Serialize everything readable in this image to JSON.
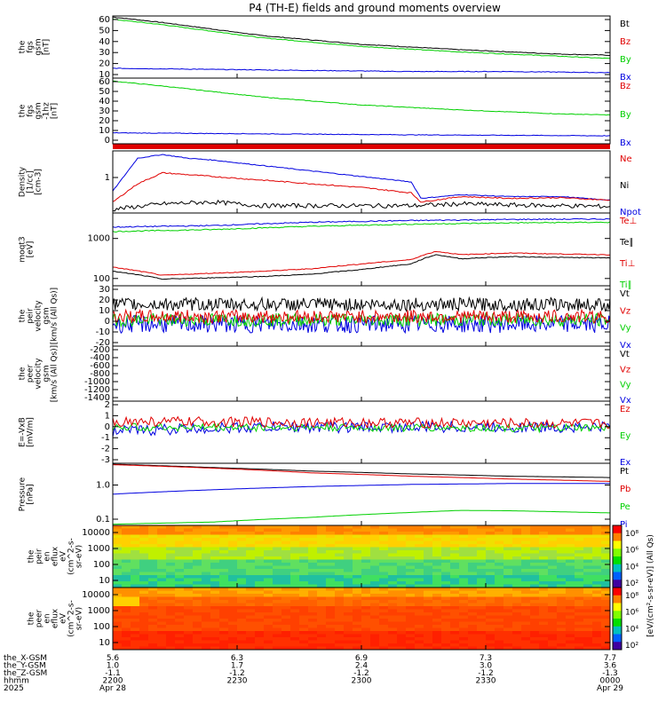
{
  "title": "P4 (TH-E) fields and ground moments overview",
  "colors": {
    "black": "#000000",
    "red": "#e00000",
    "green": "#00d000",
    "blue": "#0000e0"
  },
  "chart_data": {
    "type": "line",
    "x_ticks": [
      "2200",
      "2230",
      "2300",
      "2330",
      "0000"
    ],
    "x_dates": [
      "Apr 28",
      "Apr 29"
    ],
    "x_year": "2025",
    "footer": {
      "labels": [
        "the_X-GSM",
        "the_Y-GSM",
        "the_Z-GSM",
        "hhmm",
        "2025"
      ],
      "rows": [
        [
          "5.6",
          "6.3",
          "6.9",
          "7.3",
          "7.7"
        ],
        [
          "1.0",
          "1.7",
          "2.4",
          "3.0",
          "3.6"
        ],
        [
          "-1.1",
          "-1.2",
          "-1.2",
          "-1.2",
          "-1.3"
        ]
      ]
    },
    "panels": [
      {
        "ylabel": [
          "the",
          "fgs",
          "gsm",
          "[nT]"
        ],
        "yticks": [
          "60",
          "50",
          "40",
          "30",
          "20",
          "10"
        ],
        "ylim": [
          6,
          63
        ],
        "legend": [
          {
            "name": "Bt",
            "color": "#000000"
          },
          {
            "name": "Bz",
            "color": "#e00000"
          },
          {
            "name": "By",
            "color": "#00d000"
          },
          {
            "name": "Bx",
            "color": "#0000e0"
          }
        ],
        "series": [
          {
            "name": "Bt",
            "color": "#000000",
            "noise": 0.3,
            "x": [
              0,
              0.1,
              0.3,
              0.5,
              0.7,
              0.9,
              1
            ],
            "y": [
              62,
              57,
              45,
              37,
              32,
              28,
              27
            ]
          },
          {
            "name": "By",
            "color": "#00d000",
            "noise": 0.3,
            "x": [
              0,
              0.1,
              0.3,
              0.5,
              0.7,
              0.9,
              1
            ],
            "y": [
              60,
              55,
              43,
              35,
              30,
              26,
              24
            ]
          },
          {
            "name": "Bx",
            "color": "#0000e0",
            "noise": 0.3,
            "x": [
              0,
              0.2,
              0.4,
              0.6,
              0.8,
              1
            ],
            "y": [
              15,
              14,
              13,
              12,
              12,
              11
            ]
          }
        ]
      },
      {
        "ylabel": [
          "the",
          "fgs",
          "gsm",
          "-1hz",
          "[nT]"
        ],
        "yticks": [
          "60",
          "50",
          "40",
          "30",
          "20",
          "10",
          "0"
        ],
        "ylim": [
          -3,
          63
        ],
        "legend": [
          {
            "name": "Bz",
            "color": "#e00000"
          },
          {
            "name": "By",
            "color": "#00d000"
          },
          {
            "name": "Bx",
            "color": "#0000e0"
          }
        ],
        "series": [
          {
            "name": "By",
            "color": "#00d000",
            "noise": 0.3,
            "x": [
              0,
              0.1,
              0.3,
              0.5,
              0.7,
              0.9,
              1
            ],
            "y": [
              60,
              55,
              44,
              36,
              31,
              27,
              26
            ]
          },
          {
            "name": "Bx",
            "color": "#0000e0",
            "noise": 0.3,
            "x": [
              0,
              0.3,
              0.6,
              1
            ],
            "y": [
              8,
              7,
              6,
              5
            ]
          }
        ]
      },
      {
        "ylabel": [
          "Density",
          "[1/cc]",
          "[cm-3]"
        ],
        "yticks": [
          "1"
        ],
        "ylim": [
          0,
          1.7
        ],
        "legend": [
          {
            "name": "Ne",
            "color": "#e00000"
          },
          {
            "name": "Ni",
            "color": "#000000"
          },
          {
            "name": "Npot",
            "color": "#0000e0"
          }
        ],
        "series": [
          {
            "name": "Npot",
            "color": "#0000e0",
            "noise": 0.01,
            "x": [
              0,
              0.05,
              0.1,
              0.15,
              0.2,
              0.3,
              0.4,
              0.5,
              0.6,
              0.62,
              0.7,
              0.8,
              0.9,
              1
            ],
            "y": [
              0.6,
              1.5,
              1.6,
              1.5,
              1.45,
              1.3,
              1.15,
              1.0,
              0.85,
              0.4,
              0.5,
              0.45,
              0.45,
              0.35
            ]
          },
          {
            "name": "Ne",
            "color": "#e00000",
            "noise": 0.015,
            "x": [
              0,
              0.05,
              0.1,
              0.15,
              0.2,
              0.3,
              0.4,
              0.5,
              0.6,
              0.62,
              0.7,
              0.8,
              0.9,
              1
            ],
            "y": [
              0.3,
              0.8,
              1.1,
              1.05,
              1.0,
              0.9,
              0.8,
              0.7,
              0.55,
              0.3,
              0.45,
              0.4,
              0.42,
              0.35
            ]
          },
          {
            "name": "Ni",
            "color": "#000000",
            "noise": 0.06,
            "x": [
              0,
              0.1,
              0.2,
              0.3,
              0.4,
              0.5,
              0.6,
              0.7,
              0.8,
              0.9,
              1
            ],
            "y": [
              0.1,
              0.25,
              0.3,
              0.2,
              0.2,
              0.2,
              0.2,
              0.25,
              0.22,
              0.2,
              0.18
            ]
          }
        ]
      },
      {
        "ylabel": [
          "moqt3",
          "[eV]"
        ],
        "yticks": [
          "1000",
          "100"
        ],
        "ylim": [
          90,
          5000
        ],
        "log": true,
        "legend": [
          {
            "name": "Te⊥",
            "color": "#e00000"
          },
          {
            "name": "Te∥",
            "color": "#000000"
          },
          {
            "name": "Ti⊥",
            "color": "#e00000"
          },
          {
            "name": "Ti∥",
            "color": "#00d000"
          }
        ],
        "series": [
          {
            "name": "Te⊥",
            "color": "#0000e0",
            "noise": 0.03,
            "x": [
              0,
              0.2,
              0.4,
              0.6,
              0.8,
              1
            ],
            "y": [
              2300,
              2500,
              3000,
              3300,
              3500,
              3600
            ]
          },
          {
            "name": "Ti∥",
            "color": "#00d000",
            "noise": 0.03,
            "x": [
              0,
              0.2,
              0.4,
              0.6,
              0.8,
              1
            ],
            "y": [
              1800,
              2000,
              2400,
              2700,
              2900,
              3000
            ]
          },
          {
            "name": "Ti⊥",
            "color": "#e00000",
            "noise": 0.02,
            "x": [
              0,
              0.1,
              0.2,
              0.3,
              0.4,
              0.5,
              0.6,
              0.65,
              0.7,
              0.8,
              0.9,
              1
            ],
            "y": [
              250,
              160,
              180,
              200,
              230,
              300,
              380,
              600,
              500,
              550,
              520,
              500
            ]
          },
          {
            "name": "Te∥",
            "color": "#000000",
            "noise": 0.02,
            "x": [
              0,
              0.1,
              0.2,
              0.3,
              0.4,
              0.5,
              0.6,
              0.65,
              0.7,
              0.8,
              0.9,
              1
            ],
            "y": [
              200,
              130,
              140,
              150,
              170,
              220,
              300,
              500,
              400,
              450,
              430,
              420
            ]
          }
        ]
      },
      {
        "ylabel": [
          "the",
          "peir",
          "velocity",
          "gsm",
          "[km/s (All Qs)]"
        ],
        "yticks": [
          "30",
          "20",
          "10",
          "0",
          "-10",
          "-20"
        ],
        "ylim": [
          -22,
          33
        ],
        "legend": [
          {
            "name": "Vt",
            "color": "#000000"
          },
          {
            "name": "Vz",
            "color": "#e00000"
          },
          {
            "name": "Vy",
            "color": "#00d000"
          },
          {
            "name": "Vx",
            "color": "#0000e0"
          }
        ],
        "series": [
          {
            "name": "Vx",
            "color": "#0000e0",
            "noise": 8,
            "x": [
              0,
              1
            ],
            "y": [
              -2,
              -2
            ]
          },
          {
            "name": "Vy",
            "color": "#00d000",
            "noise": 6,
            "x": [
              0,
              1
            ],
            "y": [
              2,
              2
            ]
          },
          {
            "name": "Vz",
            "color": "#e00000",
            "noise": 6,
            "x": [
              0,
              1
            ],
            "y": [
              5,
              5
            ]
          },
          {
            "name": "Vt",
            "color": "#000000",
            "noise": 6,
            "x": [
              0,
              1
            ],
            "y": [
              16,
              16
            ]
          }
        ]
      },
      {
        "ylabel": [
          "the",
          "peer",
          "velocity",
          "gsm",
          "[km/s (All Qs)]"
        ],
        "yticks": [
          "-200",
          "-400",
          "-600",
          "-800",
          "-1000",
          "-1200",
          "-1400"
        ],
        "ylim": [
          -1450,
          -100
        ],
        "legend": [
          {
            "name": "Vt",
            "color": "#000000"
          },
          {
            "name": "Vz",
            "color": "#e00000"
          },
          {
            "name": "Vy",
            "color": "#00d000"
          },
          {
            "name": "Vx",
            "color": "#0000e0"
          }
        ],
        "series": []
      },
      {
        "ylabel": [
          "E=-VxB",
          "[mV/m]"
        ],
        "yticks": [
          "2",
          "1",
          "0",
          "-1",
          "-2",
          "-3"
        ],
        "ylim": [
          -3.2,
          2.3
        ],
        "legend": [
          {
            "name": "Ez",
            "color": "#e00000"
          },
          {
            "name": "Ey",
            "color": "#00d000"
          },
          {
            "name": "Ex",
            "color": "#0000e0"
          }
        ],
        "series": [
          {
            "name": "Ex",
            "color": "#0000e0",
            "noise": 0.5,
            "x": [
              0,
              0.1,
              0.3,
              1
            ],
            "y": [
              -0.4,
              -0.2,
              0,
              0
            ]
          },
          {
            "name": "Ey",
            "color": "#00d000",
            "noise": 0.35,
            "x": [
              0,
              1
            ],
            "y": [
              0,
              -0.1
            ]
          },
          {
            "name": "Ez",
            "color": "#e00000",
            "noise": 0.45,
            "x": [
              0,
              1
            ],
            "y": [
              0.5,
              0.3
            ]
          }
        ]
      },
      {
        "ylabel": [
          "Pressure",
          "[nPa]"
        ],
        "yticks": [
          "1.0",
          "0.1"
        ],
        "ylim": [
          0.01,
          1.4
        ],
        "log": true,
        "legend": [
          {
            "name": "Pt",
            "color": "#000000"
          },
          {
            "name": "Pb",
            "color": "#e00000"
          },
          {
            "name": "Pe",
            "color": "#00d000"
          },
          {
            "name": "Pi",
            "color": "#0000e0"
          }
        ],
        "series": [
          {
            "name": "Pt",
            "color": "#000000",
            "noise": 0.002,
            "x": [
              0,
              0.2,
              0.4,
              0.6,
              0.8,
              1
            ],
            "y": [
              1.3,
              1.0,
              0.75,
              0.6,
              0.5,
              0.45
            ]
          },
          {
            "name": "Pb",
            "color": "#e00000",
            "noise": 0.002,
            "x": [
              0,
              0.2,
              0.4,
              0.6,
              0.8,
              1
            ],
            "y": [
              1.25,
              0.95,
              0.65,
              0.5,
              0.4,
              0.33
            ]
          },
          {
            "name": "Pi",
            "color": "#0000e0",
            "noise": 0.002,
            "x": [
              0,
              0.2,
              0.4,
              0.6,
              0.8,
              1
            ],
            "y": [
              0.12,
              0.17,
              0.22,
              0.26,
              0.28,
              0.28
            ]
          },
          {
            "name": "Pe",
            "color": "#00d000",
            "noise": 0.0005,
            "x": [
              0,
              0.2,
              0.4,
              0.6,
              0.7,
              0.8,
              1
            ],
            "y": [
              0.011,
              0.013,
              0.019,
              0.028,
              0.033,
              0.032,
              0.027
            ]
          }
        ]
      },
      {
        "type": "heatmap",
        "ylabel": [
          "the",
          "peir",
          "en",
          "eflux",
          "eV",
          "(cm^2-s-",
          "sr-eV)"
        ],
        "yticks": [
          "10000",
          "1000",
          "100",
          "10"
        ],
        "colorbar": [
          "10⁸",
          "10⁶",
          "10⁴",
          "10²"
        ],
        "heat": "ion"
      },
      {
        "type": "heatmap",
        "ylabel": [
          "the",
          "peer",
          "en",
          "eflux",
          "eV",
          "(cm^2-s-",
          "sr-eV)"
        ],
        "yticks": [
          "10000",
          "1000",
          "100",
          "10"
        ],
        "colorbar": [
          "10⁸",
          "10⁶",
          "10⁴",
          "10²"
        ],
        "heat": "electron"
      }
    ],
    "colorbar_label": "[eV/(cm²-s-sr-eV)] (All Qs)"
  }
}
